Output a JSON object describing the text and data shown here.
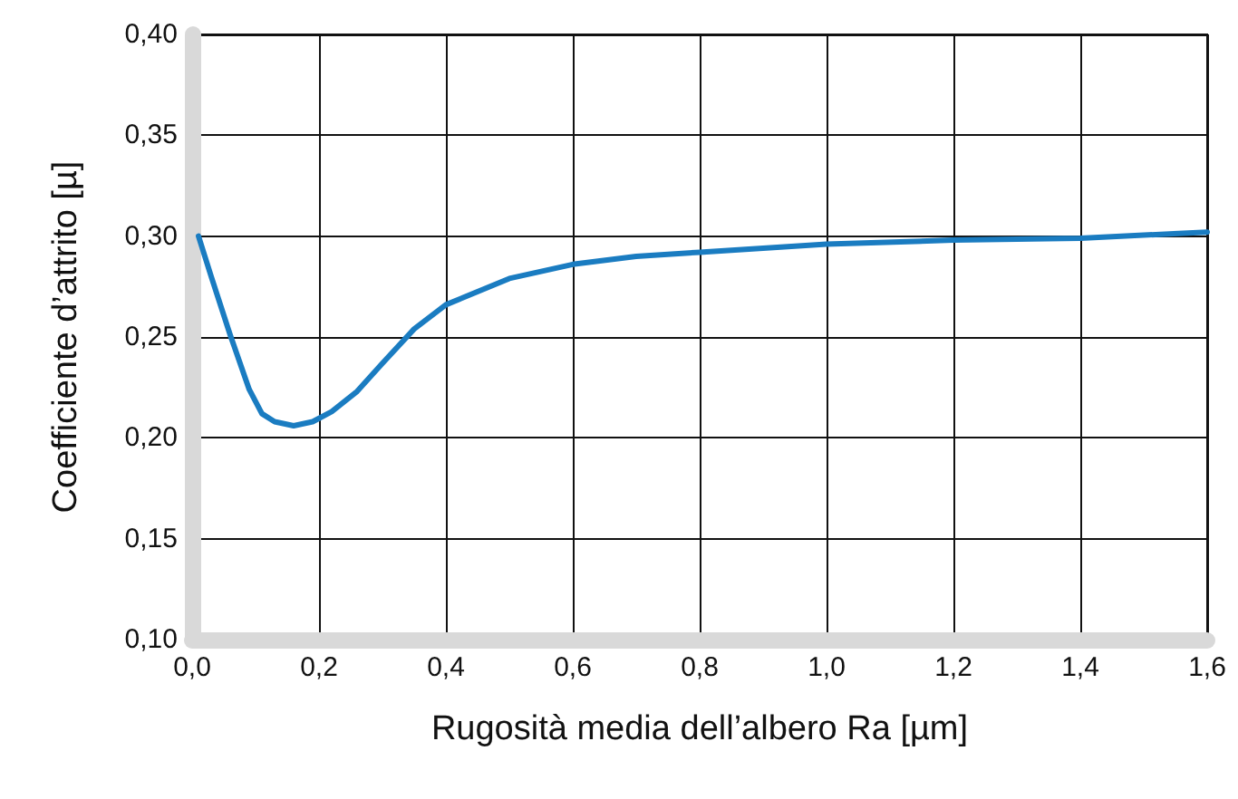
{
  "chart_data": {
    "type": "line",
    "xlabel": "Rugosità media dell’albero Ra [µm]",
    "ylabel": "Coefficiente d’attrito [µ]",
    "x": [
      0.01,
      0.03,
      0.06,
      0.09,
      0.11,
      0.13,
      0.16,
      0.19,
      0.22,
      0.26,
      0.3,
      0.35,
      0.4,
      0.5,
      0.6,
      0.7,
      0.8,
      1.0,
      1.2,
      1.4,
      1.6
    ],
    "series": [
      {
        "color": "#1a7cc1",
        "values": [
          0.3,
          0.28,
          0.251,
          0.224,
          0.212,
          0.208,
          0.206,
          0.208,
          0.213,
          0.223,
          0.237,
          0.254,
          0.266,
          0.279,
          0.286,
          0.29,
          0.292,
          0.296,
          0.298,
          0.299,
          0.302
        ]
      }
    ],
    "xlim": [
      0,
      1.6
    ],
    "xticks": [
      {
        "value": 0,
        "label": "0,0"
      },
      {
        "value": 0.2,
        "label": "0,2"
      },
      {
        "value": 0.4,
        "label": "0,4"
      },
      {
        "value": 0.6,
        "label": "0,6"
      },
      {
        "value": 0.8,
        "label": "0,8"
      },
      {
        "value": 1.0,
        "label": "1,0"
      },
      {
        "value": 1.2,
        "label": "1,2"
      },
      {
        "value": 1.4,
        "label": "1,4"
      },
      {
        "value": 1.6,
        "label": "1,6"
      }
    ],
    "ylim": [
      0.1,
      0.4
    ],
    "yticks": [
      {
        "value": 0.1,
        "label": "0,10"
      },
      {
        "value": 0.15,
        "label": "0,15"
      },
      {
        "value": 0.2,
        "label": "0,20"
      },
      {
        "value": 0.25,
        "label": "0,25"
      },
      {
        "value": 0.3,
        "label": "0,30"
      },
      {
        "value": 0.35,
        "label": "0,35"
      },
      {
        "value": 0.4,
        "label": "0,40"
      }
    ],
    "grid": true,
    "marker": "none",
    "line_style": "solid"
  }
}
